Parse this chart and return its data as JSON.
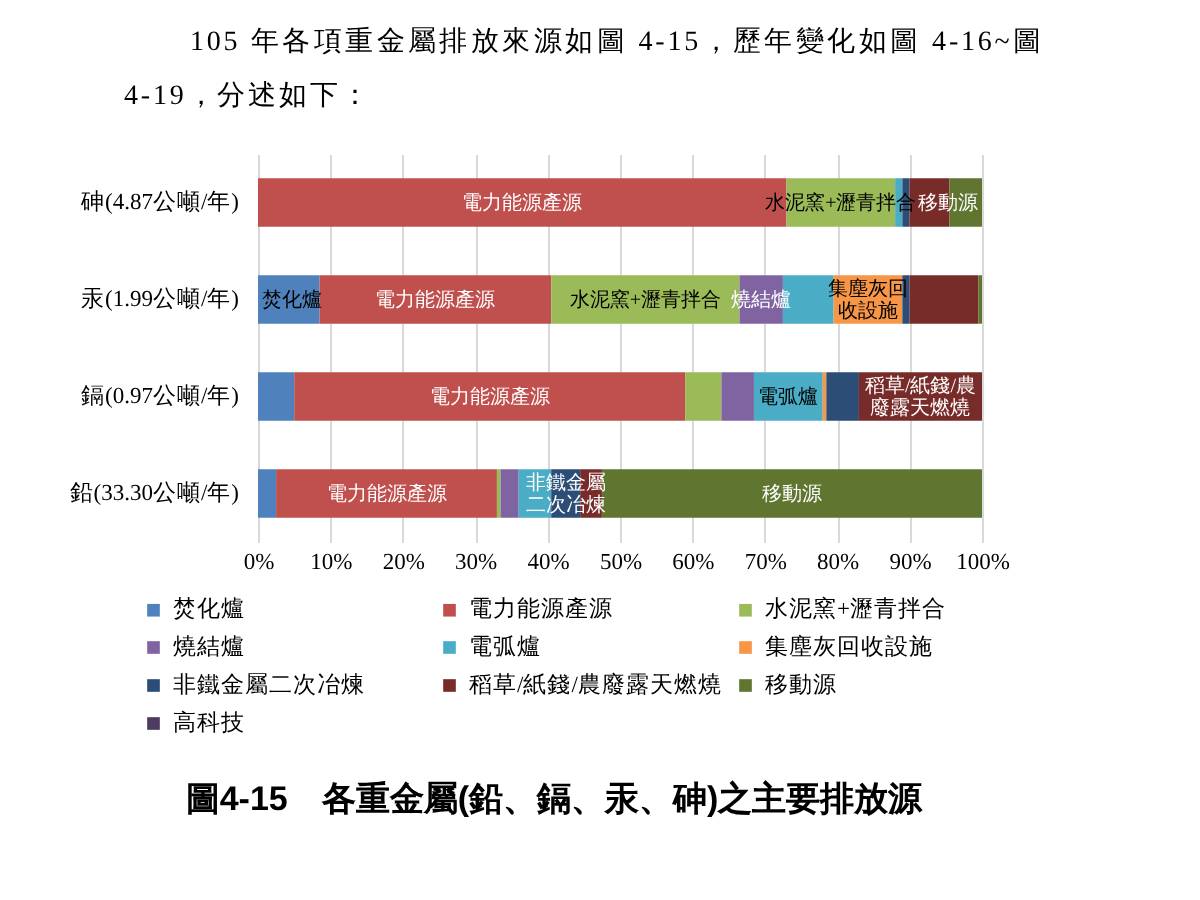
{
  "chart_data": {
    "type": "bar",
    "orientation": "horizontal",
    "stacked": true,
    "title": "圖4-15　各重金屬(鉛、鎘、汞、砷)之主要排放源",
    "categories": [
      "砷(4.87公噸/年)",
      "汞(1.99公噸/年)",
      "鎘(0.97公噸/年)",
      "鉛(33.30公噸/年)"
    ],
    "series": [
      {
        "name": "焚化爐",
        "color": "#4f81bd",
        "values": [
          null,
          8.5,
          5,
          2.5
        ],
        "value_labels": [
          null,
          "焚化爐",
          null,
          null
        ]
      },
      {
        "name": "電力能源產源",
        "color": "#c0504d",
        "values": [
          73,
          32,
          54,
          30.5
        ],
        "value_labels": [
          "電力能源產源",
          "電力能源產源",
          "電力能源產源",
          "電力能源產源"
        ]
      },
      {
        "name": "水泥窯+瀝青拌合",
        "color": "#9bbb59",
        "values": [
          15,
          26,
          5,
          0.5
        ],
        "value_labels": [
          "水泥窯+瀝青拌合",
          "水泥窯+瀝青拌合",
          null,
          null
        ]
      },
      {
        "name": "燒結爐",
        "color": "#8064a2",
        "values": [
          null,
          6,
          4.5,
          2.5
        ],
        "value_labels": [
          null,
          "燒結爐",
          null,
          null
        ]
      },
      {
        "name": "電弧爐",
        "color": "#4bacc6",
        "values": [
          1,
          7,
          9.5,
          4.5
        ],
        "value_labels": [
          null,
          null,
          "電弧爐",
          null
        ]
      },
      {
        "name": "集塵灰回收設施",
        "color": "#f79646",
        "values": [
          null,
          9.5,
          0.5,
          null
        ],
        "value_labels": [
          null,
          "集塵灰回收設施",
          null,
          null
        ]
      },
      {
        "name": "非鐵金屬二次冶煉",
        "color": "#2c4d75",
        "values": [
          1,
          1,
          4.5,
          4
        ],
        "value_labels": [
          null,
          null,
          null,
          "非鐵金屬二次冶煉"
        ]
      },
      {
        "name": "稻草/紙錢/農廢露天燃燒",
        "color": "#772c2a",
        "values": [
          5.5,
          9.5,
          17,
          3
        ],
        "value_labels": [
          null,
          null,
          "稻草/紙錢/農廢露天燃燒",
          null
        ]
      },
      {
        "name": "移動源",
        "color": "#5f7530",
        "values": [
          4.5,
          0.5,
          null,
          52.5
        ],
        "value_labels": [
          "移動源",
          null,
          null,
          "移動源"
        ]
      },
      {
        "name": "高科技",
        "color": "#4d3b62",
        "values": [
          null,
          null,
          null,
          null
        ]
      }
    ],
    "xlim": [
      0,
      100
    ],
    "xticks": [
      {
        "value": 0,
        "label": "0%"
      },
      {
        "value": 10,
        "label": "10%"
      },
      {
        "value": 20,
        "label": "20%"
      },
      {
        "value": 30,
        "label": "30%"
      },
      {
        "value": 40,
        "label": "40%"
      },
      {
        "value": 50,
        "label": "50%"
      },
      {
        "value": 60,
        "label": "60%"
      },
      {
        "value": 70,
        "label": "70%"
      },
      {
        "value": 80,
        "label": "80%"
      },
      {
        "value": 90,
        "label": "90%"
      },
      {
        "value": 100,
        "label": "100%"
      }
    ],
    "grid": "x",
    "legend": "bottom",
    "annotations": [
      "105 年各項重金屬排放來源如圖 4-15，歷年變化如圖 4-16~圖 4-19，分述如下："
    ]
  }
}
